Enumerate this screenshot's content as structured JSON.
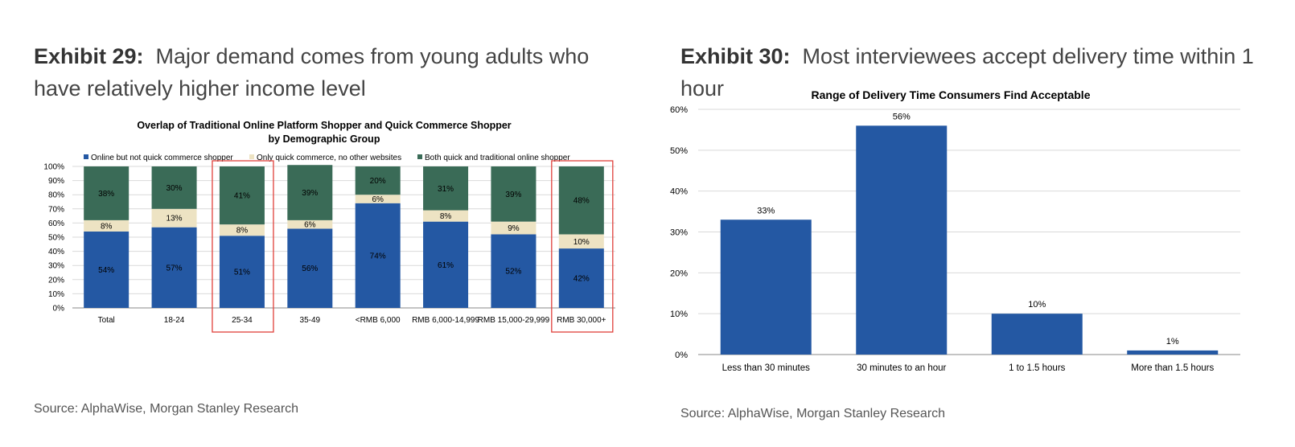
{
  "exhibit29": {
    "label": "Exhibit 29:",
    "heading": "Major demand comes from young adults who have relatively higher income level",
    "source": "Source: AlphaWise, Morgan Stanley Research"
  },
  "exhibit30": {
    "label": "Exhibit 30:",
    "heading": "Most interviewees accept delivery time within 1 hour",
    "source": "Source: AlphaWise, Morgan Stanley Research"
  },
  "colors": {
    "blue": "#2458A3",
    "cream": "#EDE3C3",
    "green": "#3A6B57",
    "highlight": "#E0403A",
    "grid": "#D9D9D9"
  },
  "chart_data": [
    {
      "type": "bar",
      "stacked": true,
      "title": "Overlap of Traditional Online Platform Shopper and Quick Commerce Shopper",
      "subtitle": "by Demographic Group",
      "categories": [
        "Total",
        "18-24",
        "25-34",
        "35-49",
        "<RMB 6,000",
        "RMB 6,000-14,999",
        "RMB 15,000-29,999",
        "RMB 30,000+"
      ],
      "series": [
        {
          "name": "Online but not quick commerce shopper",
          "values": [
            54,
            57,
            51,
            56,
            74,
            61,
            52,
            42
          ],
          "labels": [
            "54%",
            "57%",
            "51%",
            "56%",
            "74%",
            "61%",
            "52%",
            "42%"
          ]
        },
        {
          "name": "Only quick commerce, no other websites",
          "values": [
            8,
            13,
            8,
            6,
            6,
            8,
            9,
            10
          ],
          "labels": [
            "8%",
            "13%",
            "8%",
            "6%",
            "6%",
            "8%",
            "9%",
            "10%"
          ]
        },
        {
          "name": "Both quick and traditional online shopper",
          "values": [
            38,
            30,
            41,
            39,
            20,
            31,
            39,
            48
          ],
          "labels": [
            "38%",
            "30%",
            "41%",
            "39%",
            "20%",
            "31%",
            "39%",
            "48%"
          ]
        }
      ],
      "yticks": [
        "0%",
        "10%",
        "20%",
        "30%",
        "40%",
        "50%",
        "60%",
        "70%",
        "80%",
        "90%",
        "100%"
      ],
      "ylim": [
        0,
        100
      ],
      "legend": "top",
      "grid": true,
      "highlighted_categories": [
        "25-34",
        "RMB 30,000+"
      ]
    },
    {
      "type": "bar",
      "title": "Range of Delivery Time Consumers Find Acceptable",
      "categories": [
        "Less than 30 minutes",
        "30 minutes to an hour",
        "1 to 1.5 hours",
        "More than 1.5 hours"
      ],
      "values": [
        33,
        56,
        10,
        1
      ],
      "value_labels": [
        "33%",
        "56%",
        "10%",
        "1%"
      ],
      "yticks": [
        "0%",
        "10%",
        "20%",
        "30%",
        "40%",
        "50%",
        "60%"
      ],
      "ylim": [
        0,
        60
      ],
      "grid": true
    }
  ]
}
